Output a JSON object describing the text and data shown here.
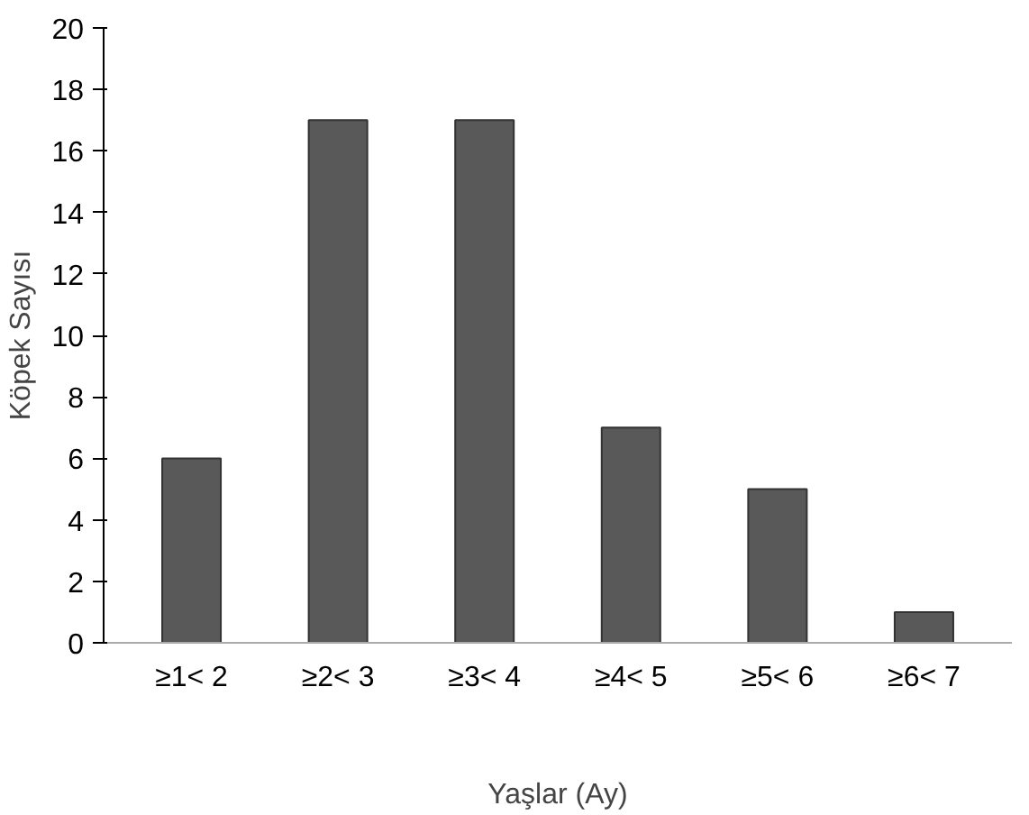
{
  "chart_data": {
    "type": "bar",
    "xlabel": "Yaşlar (Ay)",
    "ylabel": "Köpek Sayısı",
    "categories": [
      "≥1< 2",
      "≥2< 3",
      "≥3< 4",
      "≥4< 5",
      "≥5< 6",
      "≥6< 7"
    ],
    "values": [
      6,
      17,
      17,
      7,
      5,
      1
    ],
    "color": "#595959",
    "ylim": [
      0,
      20
    ],
    "yticks": [
      0,
      2,
      4,
      6,
      8,
      10,
      12,
      14,
      16,
      18,
      20
    ],
    "grid": false
  }
}
